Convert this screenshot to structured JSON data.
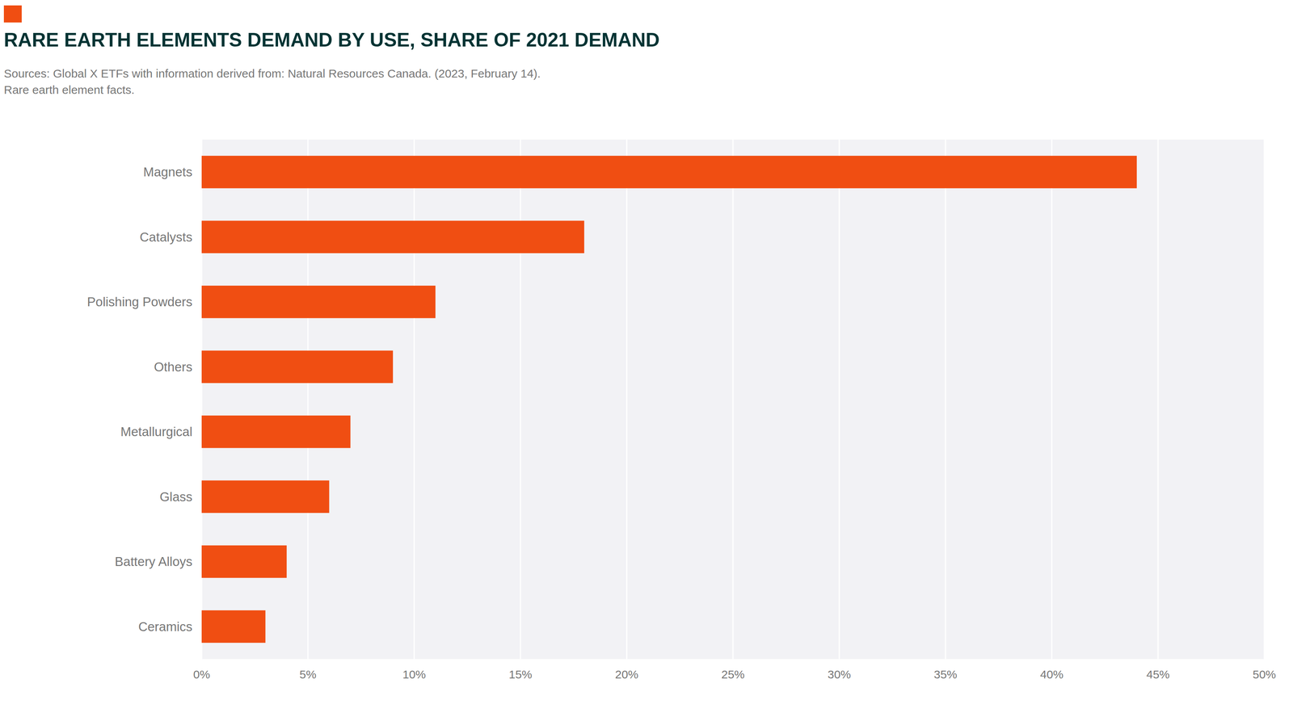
{
  "chart_data": {
    "type": "bar",
    "orientation": "horizontal",
    "title": "RARE EARTH ELEMENTS DEMAND BY USE, SHARE OF 2021 DEMAND",
    "subtitle": [
      "Sources: Global X ETFs with information derived from: Natural Resources Canada. (2023, February 14).",
      "Rare earth element facts."
    ],
    "categories": [
      "Magnets",
      "Catalysts",
      "Polishing Powders",
      "Others",
      "Metallurgical",
      "Glass",
      "Battery Alloys",
      "Ceramics"
    ],
    "values": [
      44,
      18,
      11,
      9,
      7,
      6,
      4,
      3
    ],
    "color": "#f04e12",
    "xlim": [
      0,
      50
    ],
    "xticks": [
      {
        "value": 0,
        "label": "0%"
      },
      {
        "value": 5,
        "label": "5%"
      },
      {
        "value": 10,
        "label": "10%"
      },
      {
        "value": 15,
        "label": "15%"
      },
      {
        "value": 20,
        "label": "20%"
      },
      {
        "value": 25,
        "label": "25%"
      },
      {
        "value": 30,
        "label": "30%"
      },
      {
        "value": 35,
        "label": "35%"
      },
      {
        "value": 40,
        "label": "40%"
      },
      {
        "value": 45,
        "label": "45%"
      },
      {
        "value": 50,
        "label": "50%"
      }
    ],
    "grid": true
  }
}
